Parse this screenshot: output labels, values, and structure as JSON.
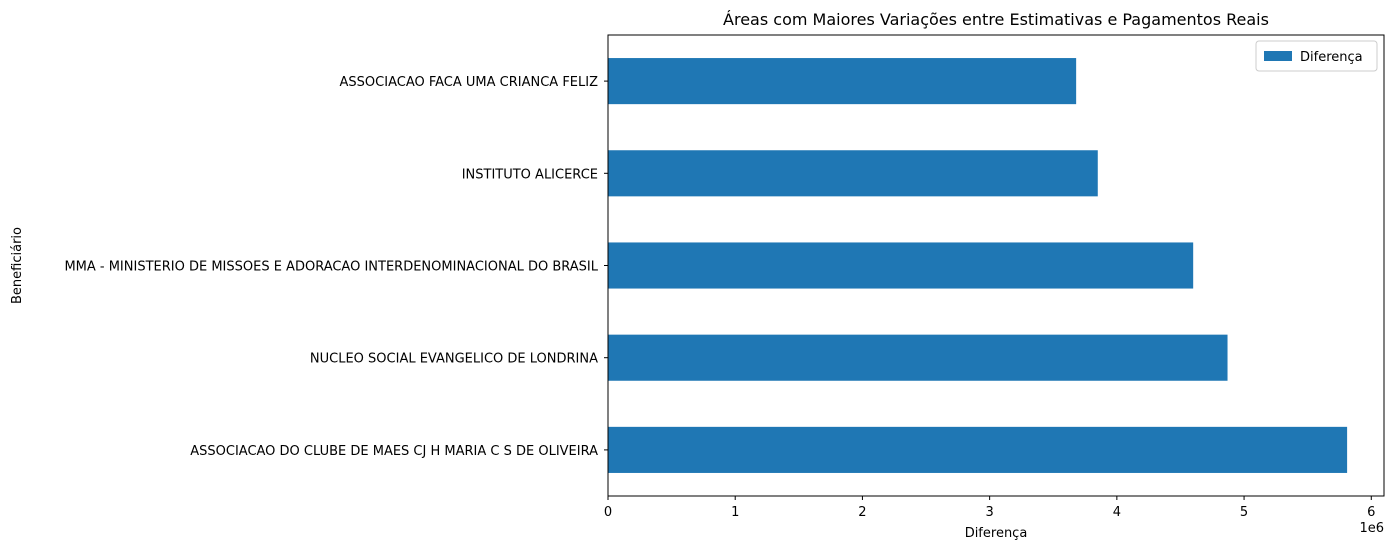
{
  "chart_data": {
    "type": "bar",
    "orientation": "horizontal",
    "title": "Áreas com Maiores Variações entre Estimativas e Pagamentos Reais",
    "xlabel": "Diferença",
    "ylabel": "Beneficiário",
    "x_offset_text": "1e6",
    "xlim": [
      0,
      6.1
    ],
    "xticks": [
      0,
      1,
      2,
      3,
      4,
      5,
      6
    ],
    "xtick_labels": [
      "0",
      "1",
      "2",
      "3",
      "4",
      "5",
      "6"
    ],
    "categories": [
      "ASSOCIACAO FACA UMA CRIANCA FELIZ",
      "INSTITUTO ALICERCE",
      "MMA - MINISTERIO DE MISSOES E ADORACAO INTERDENOMINACIONAL DO BRASIL",
      "NUCLEO SOCIAL EVANGELICO DE LONDRINA",
      "ASSOCIACAO DO CLUBE DE MAES CJ H MARIA C S DE OLIVEIRA"
    ],
    "series": [
      {
        "name": "Diferença",
        "color": "#1f77b4",
        "values": [
          3.68,
          3.85,
          4.6,
          4.87,
          5.81
        ]
      }
    ],
    "legend": {
      "position": "upper right",
      "entries": [
        "Diferença"
      ]
    },
    "grid": false
  }
}
